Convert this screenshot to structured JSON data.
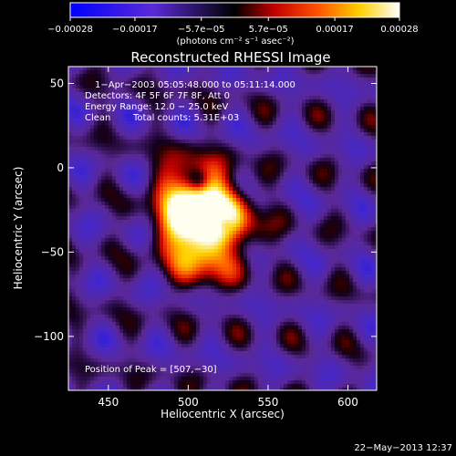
{
  "chart_data": {
    "type": "heatmap",
    "title": "Reconstructed RHESSI Image",
    "xlabel": "Heliocentric X (arcsec)",
    "ylabel": "Heliocentric Y (arcsec)",
    "xlim": [
      425,
      618
    ],
    "ylim": [
      -132,
      60
    ],
    "x_ticks": [
      450,
      500,
      550,
      600
    ],
    "y_ticks": [
      50,
      0,
      -50,
      -100
    ],
    "x_tick_labels": [
      "450",
      "500",
      "550",
      "600"
    ],
    "y_tick_labels": [
      "50",
      "0",
      "−50",
      "−100"
    ],
    "colorbar": {
      "range": [
        -0.00028,
        0.00028
      ],
      "ticks": [
        -0.00028,
        -0.00017,
        -5.7e-05,
        5.7e-05,
        0.00017,
        0.00028
      ],
      "tick_labels": [
        "−0.00028",
        "−0.00017",
        "−5.7e−05",
        "5.7e−05",
        "0.00017",
        "0.00028"
      ],
      "units_text": "(photons cm⁻² s⁻¹ asec⁻²)"
    },
    "annotations": [
      "1−Apr−2003 05:05:48.000 to 05:11:14.000",
      "Detectors: 4F 5F 6F 7F 8F, Att 0",
      "Energy Range: 12.0 − 25.0 keV",
      "Clean",
      "Total counts: 5.31E+03",
      "Position of Peak = [507,−30]"
    ],
    "peak": [
      507,
      -30
    ],
    "source_components": [
      {
        "x": 500,
        "y": -35,
        "amp": 1.0
      },
      {
        "x": 515,
        "y": -20,
        "amp": 0.75
      },
      {
        "x": 497,
        "y": -10,
        "amp": 0.55
      },
      {
        "x": 530,
        "y": -35,
        "amp": 0.45
      },
      {
        "x": 510,
        "y": -55,
        "amp": 0.5
      }
    ]
  },
  "footer": {
    "timestamp": "22−May−2013 12:37"
  }
}
